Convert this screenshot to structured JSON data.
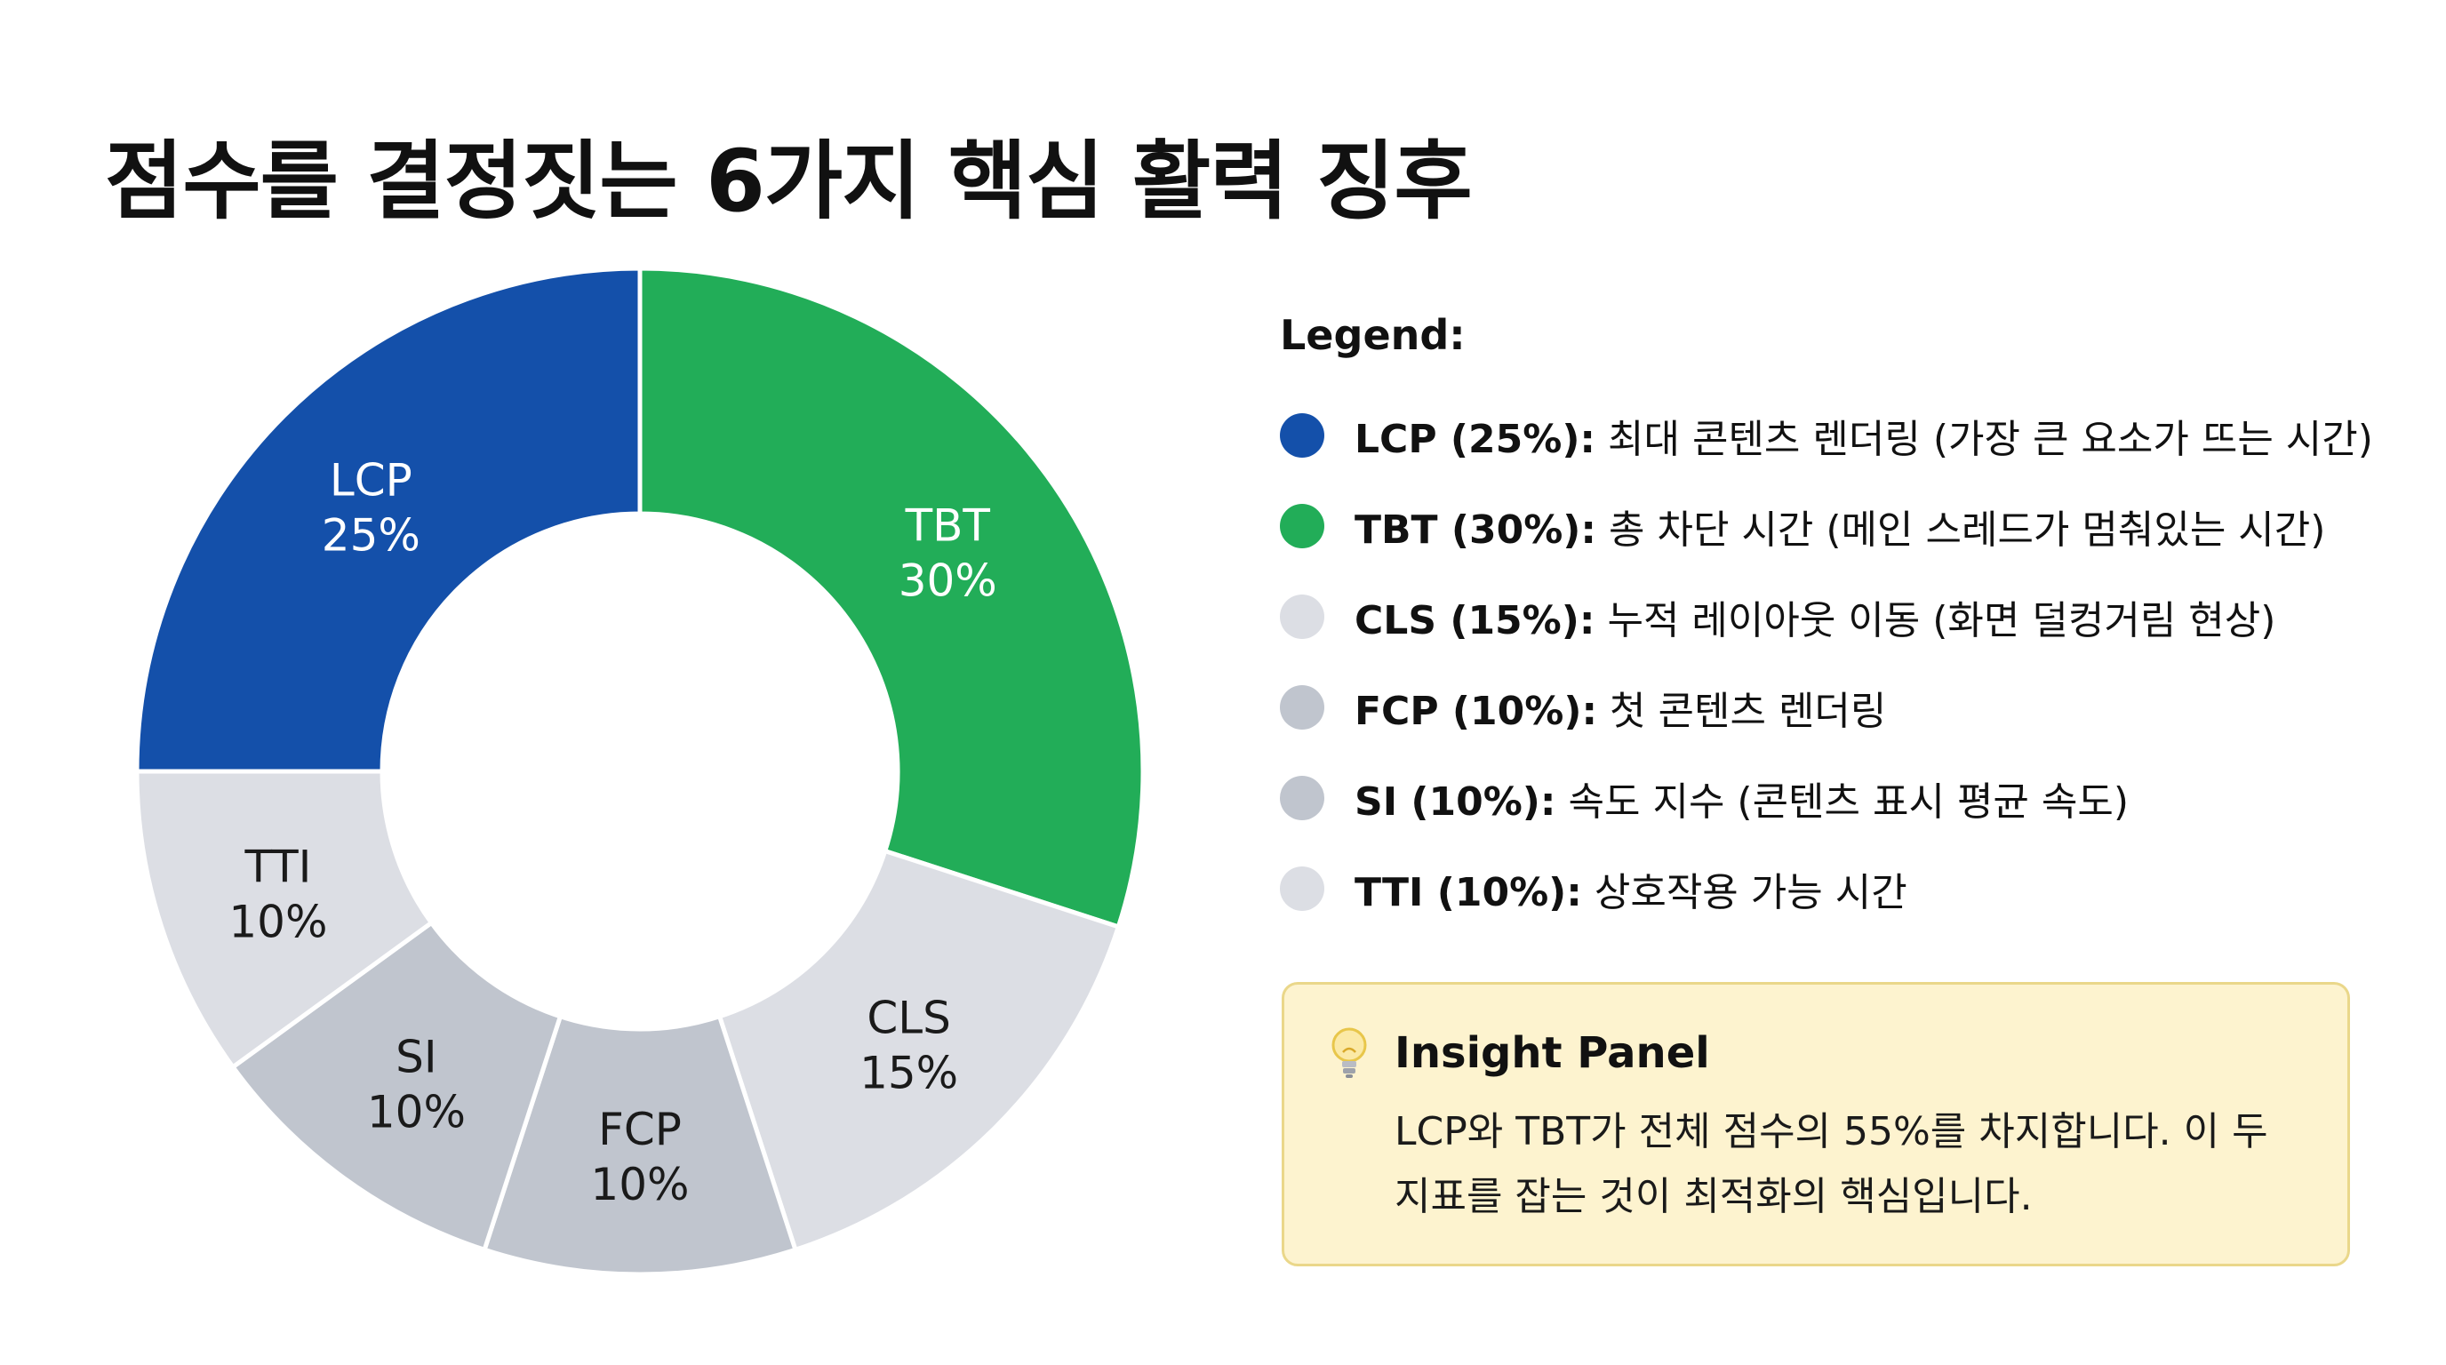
{
  "title": "점수를 결정짓는 6가지 핵심 활력 징후",
  "chart_data": {
    "type": "pie",
    "donut": true,
    "title": "점수를 결정짓는 6가지 핵심 활력 징후",
    "slices": [
      {
        "key": "TBT",
        "value": 30,
        "pct_label": "30%",
        "color": "#22ad58",
        "label_color": "#ffffff"
      },
      {
        "key": "CLS",
        "value": 15,
        "pct_label": "15%",
        "color": "#dcdee4",
        "label_color": "#1a1a1a"
      },
      {
        "key": "FCP",
        "value": 10,
        "pct_label": "10%",
        "color": "#c0c5ce",
        "label_color": "#1a1a1a"
      },
      {
        "key": "SI",
        "value": 10,
        "pct_label": "10%",
        "color": "#c0c5ce",
        "label_color": "#1a1a1a"
      },
      {
        "key": "TTI",
        "value": 10,
        "pct_label": "10%",
        "color": "#dcdee4",
        "label_color": "#1a1a1a"
      },
      {
        "key": "LCP",
        "value": 25,
        "pct_label": "25%",
        "color": "#1450aa",
        "label_color": "#ffffff"
      }
    ]
  },
  "legend": {
    "title": "Legend:",
    "items": [
      {
        "key": "LCP (25%):",
        "desc": "최대 콘텐츠 렌더링 (가장 큰 요소가 뜨는 시간)",
        "color": "#1450aa"
      },
      {
        "key": "TBT (30%):",
        "desc": "총 차단 시간 (메인 스레드가 멈춰있는 시간)",
        "color": "#22ad58"
      },
      {
        "key": "CLS (15%):",
        "desc": "누적 레이아웃 이동 (화면 덜컹거림 현상)",
        "color": "#dcdee4"
      },
      {
        "key": "FCP (10%):",
        "desc": "첫 콘텐츠 렌더링",
        "color": "#c0c5ce"
      },
      {
        "key": "SI (10%):",
        "desc": "속도 지수 (콘텐츠 표시 평균 속도)",
        "color": "#c0c5ce"
      },
      {
        "key": "TTI (10%):",
        "desc": "상호작용 가능 시간",
        "color": "#dcdee4"
      }
    ]
  },
  "insight": {
    "icon": "lightbulb-icon",
    "title": "Insight Panel",
    "line1": "LCP와 TBT가 전체 점수의 55%를 차지합니다. 이 두",
    "line2": "지표를 잡는 것이 최적화의 핵심입니다."
  }
}
